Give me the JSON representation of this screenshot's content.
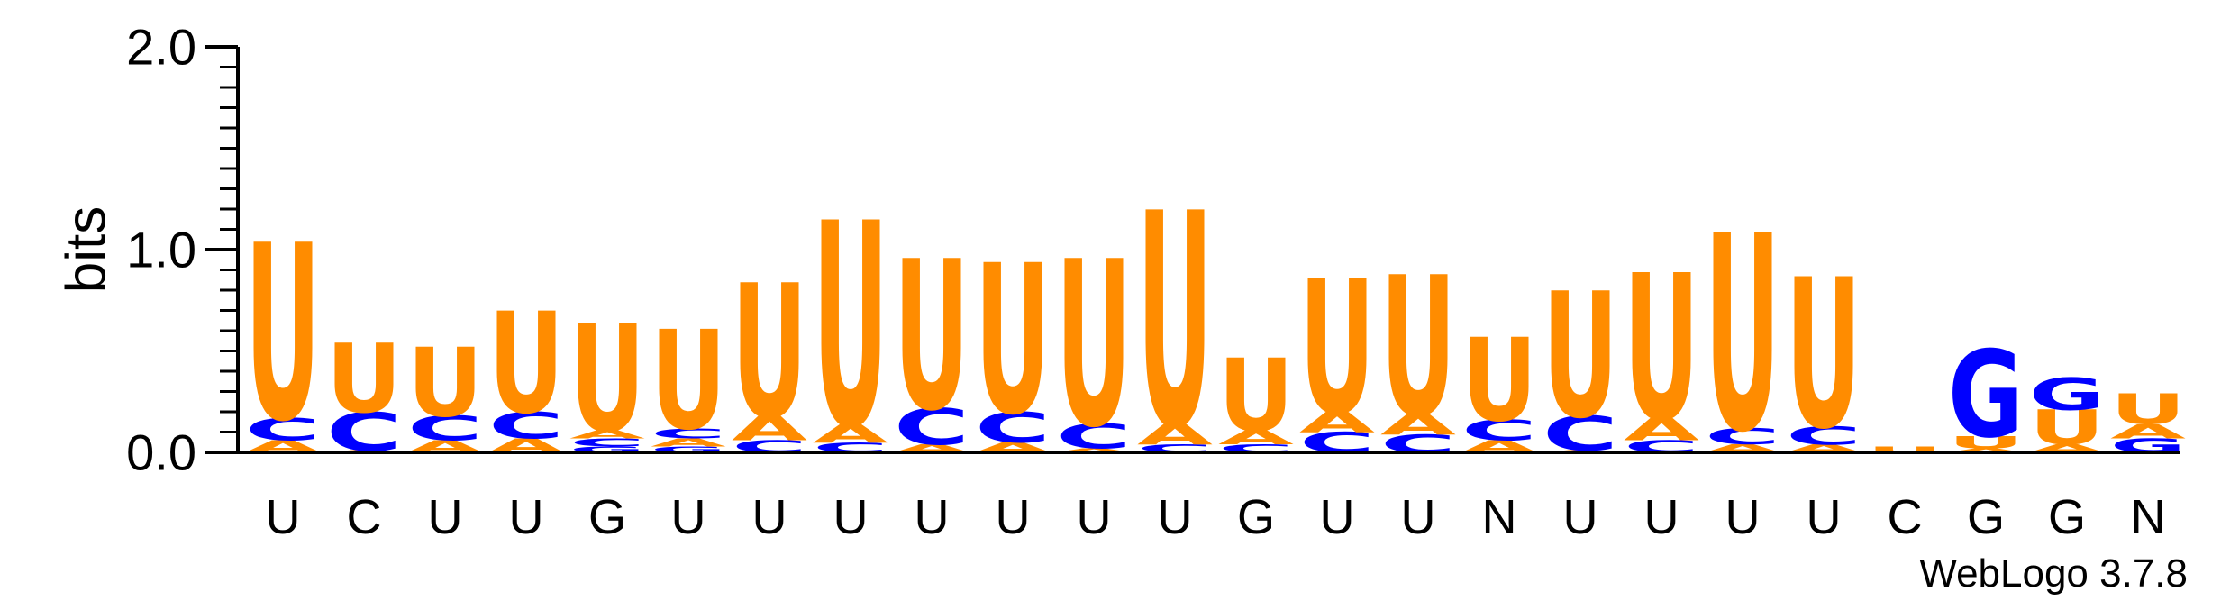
{
  "chart_data": {
    "type": "sequence-logo",
    "ylabel": "bits",
    "ylim": [
      0,
      2.0
    ],
    "yticks": [
      "0.0",
      "1.0",
      "2.0"
    ],
    "colors": {
      "U": "#FF8C00",
      "A": "#FF8C00",
      "C": "#0000FF",
      "G": "#0000FF"
    },
    "positions": [
      {
        "label": "U",
        "stack": [
          [
            "A",
            0.06
          ],
          [
            "C",
            0.11
          ],
          [
            "U",
            0.87
          ]
        ]
      },
      {
        "label": "C",
        "stack": [
          [
            "A",
            0.01
          ],
          [
            "C",
            0.19
          ],
          [
            "U",
            0.34
          ]
        ]
      },
      {
        "label": "U",
        "stack": [
          [
            "A",
            0.06
          ],
          [
            "C",
            0.12
          ],
          [
            "U",
            0.34
          ]
        ]
      },
      {
        "label": "U",
        "stack": [
          [
            "A",
            0.07
          ],
          [
            "C",
            0.13
          ],
          [
            "U",
            0.5
          ]
        ]
      },
      {
        "label": "G",
        "stack": [
          [
            "G",
            0.03
          ],
          [
            "C",
            0.04
          ],
          [
            "A",
            0.04
          ],
          [
            "U",
            0.53
          ]
        ]
      },
      {
        "label": "U",
        "stack": [
          [
            "G",
            0.03
          ],
          [
            "A",
            0.04
          ],
          [
            "C",
            0.05
          ],
          [
            "U",
            0.49
          ]
        ]
      },
      {
        "label": "U",
        "stack": [
          [
            "C",
            0.06
          ],
          [
            "A",
            0.12
          ],
          [
            "U",
            0.66
          ]
        ]
      },
      {
        "label": "U",
        "stack": [
          [
            "C",
            0.05
          ],
          [
            "A",
            0.09
          ],
          [
            "U",
            1.01
          ]
        ]
      },
      {
        "label": "U",
        "stack": [
          [
            "A",
            0.04
          ],
          [
            "C",
            0.18
          ],
          [
            "U",
            0.74
          ]
        ]
      },
      {
        "label": "U",
        "stack": [
          [
            "A",
            0.05
          ],
          [
            "C",
            0.15
          ],
          [
            "U",
            0.74
          ]
        ]
      },
      {
        "label": "U",
        "stack": [
          [
            "A",
            0.02
          ],
          [
            "C",
            0.12
          ],
          [
            "U",
            0.82
          ]
        ]
      },
      {
        "label": "U",
        "stack": [
          [
            "C",
            0.04
          ],
          [
            "A",
            0.1
          ],
          [
            "U",
            1.06
          ]
        ]
      },
      {
        "label": "G",
        "stack": [
          [
            "C",
            0.04
          ],
          [
            "A",
            0.07
          ],
          [
            "U",
            0.36
          ]
        ]
      },
      {
        "label": "U",
        "stack": [
          [
            "C",
            0.1
          ],
          [
            "A",
            0.1
          ],
          [
            "U",
            0.66
          ]
        ]
      },
      {
        "label": "U",
        "stack": [
          [
            "C",
            0.09
          ],
          [
            "A",
            0.1
          ],
          [
            "U",
            0.69
          ]
        ]
      },
      {
        "label": "N",
        "stack": [
          [
            "A",
            0.06
          ],
          [
            "C",
            0.1
          ],
          [
            "U",
            0.41
          ]
        ]
      },
      {
        "label": "U",
        "stack": [
          [
            "A",
            0.01
          ],
          [
            "C",
            0.17
          ],
          [
            "U",
            0.62
          ]
        ]
      },
      {
        "label": "U",
        "stack": [
          [
            "C",
            0.06
          ],
          [
            "A",
            0.11
          ],
          [
            "U",
            0.72
          ]
        ]
      },
      {
        "label": "U",
        "stack": [
          [
            "A",
            0.04
          ],
          [
            "C",
            0.08
          ],
          [
            "U",
            0.97
          ]
        ]
      },
      {
        "label": "U",
        "stack": [
          [
            "A",
            0.04
          ],
          [
            "C",
            0.09
          ],
          [
            "U",
            0.74
          ]
        ]
      },
      {
        "label": "C",
        "stack": [
          [
            "U",
            0.03
          ]
        ]
      },
      {
        "label": "G",
        "stack": [
          [
            "A",
            0.02
          ],
          [
            "U",
            0.06
          ],
          [
            "G",
            0.43
          ]
        ]
      },
      {
        "label": "G",
        "stack": [
          [
            "A",
            0.04
          ],
          [
            "U",
            0.17
          ],
          [
            "G",
            0.16
          ]
        ]
      },
      {
        "label": "N",
        "stack": [
          [
            "G",
            0.07
          ],
          [
            "A",
            0.07
          ],
          [
            "U",
            0.15
          ]
        ]
      }
    ],
    "footer": "WebLogo 3.7.8"
  }
}
